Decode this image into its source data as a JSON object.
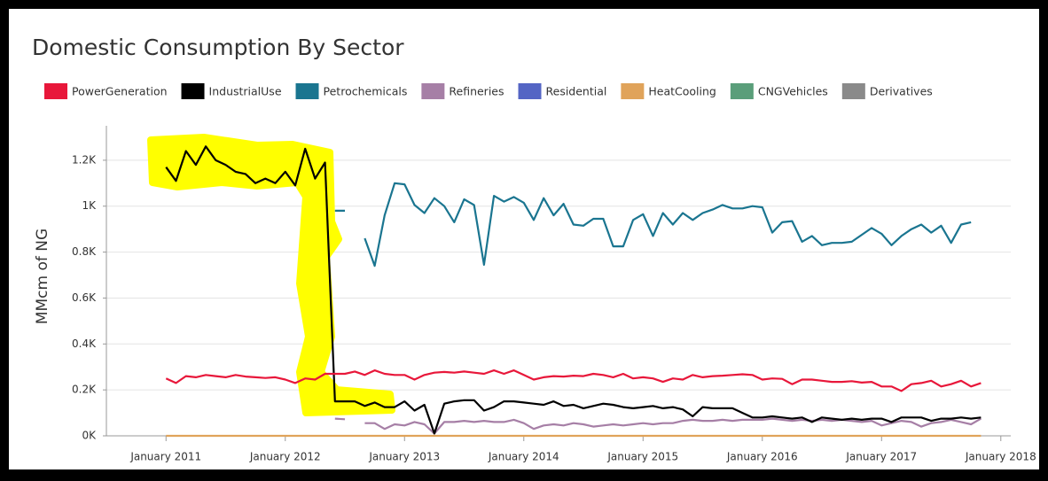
{
  "chart_data": {
    "type": "line",
    "title": "Domestic Consumption By Sector",
    "y_label": "MMcm of NG",
    "x": [
      "2011-01",
      "2011-02",
      "2011-03",
      "2011-04",
      "2011-05",
      "2011-06",
      "2011-07",
      "2011-08",
      "2011-09",
      "2011-10",
      "2011-11",
      "2011-12",
      "2012-01",
      "2012-02",
      "2012-03",
      "2012-04",
      "2012-05",
      "2012-06",
      "2012-07",
      "2012-08",
      "2012-09",
      "2012-10",
      "2012-11",
      "2012-12",
      "2013-01",
      "2013-02",
      "2013-03",
      "2013-04",
      "2013-05",
      "2013-06",
      "2013-07",
      "2013-08",
      "2013-09",
      "2013-10",
      "2013-11",
      "2013-12",
      "2014-01",
      "2014-02",
      "2014-03",
      "2014-04",
      "2014-05",
      "2014-06",
      "2014-07",
      "2014-08",
      "2014-09",
      "2014-10",
      "2014-11",
      "2014-12",
      "2015-01",
      "2015-02",
      "2015-03",
      "2015-04",
      "2015-05",
      "2015-06",
      "2015-07",
      "2015-08",
      "2015-09",
      "2015-10",
      "2015-11",
      "2015-12",
      "2016-01",
      "2016-02",
      "2016-03",
      "2016-04",
      "2016-05",
      "2016-06",
      "2016-07",
      "2016-08",
      "2016-09",
      "2016-10",
      "2016-11",
      "2016-12",
      "2017-01",
      "2017-02",
      "2017-03",
      "2017-04",
      "2017-05",
      "2017-06",
      "2017-07",
      "2017-08",
      "2017-09",
      "2017-10",
      "2017-11",
      "2017-12"
    ],
    "xlim": [
      "2010-07",
      "2018-02"
    ],
    "xticks": [
      {
        "value": "2011-01",
        "label": "January 2011"
      },
      {
        "value": "2012-01",
        "label": "January 2012"
      },
      {
        "value": "2013-01",
        "label": "January 2013"
      },
      {
        "value": "2014-01",
        "label": "January 2014"
      },
      {
        "value": "2015-01",
        "label": "January 2015"
      },
      {
        "value": "2016-01",
        "label": "January 2016"
      },
      {
        "value": "2017-01",
        "label": "January 2017"
      },
      {
        "value": "2018-01",
        "label": "January 2018"
      }
    ],
    "ylim": [
      0,
      1350
    ],
    "yticks": [
      {
        "value": 0,
        "label": "0K"
      },
      {
        "value": 200,
        "label": "0.2K"
      },
      {
        "value": 400,
        "label": "0.4K"
      },
      {
        "value": 600,
        "label": "0.6K"
      },
      {
        "value": 800,
        "label": "0.8K"
      },
      {
        "value": 1000,
        "label": "1K"
      },
      {
        "value": 1200,
        "label": "1.2K"
      }
    ],
    "grid": true,
    "legend": "top",
    "series": [
      {
        "name": "PowerGeneration",
        "color": "#e8173a",
        "values": [
          250,
          230,
          260,
          255,
          265,
          260,
          255,
          265,
          258,
          255,
          252,
          255,
          245,
          230,
          250,
          245,
          270,
          270,
          270,
          280,
          265,
          285,
          270,
          265,
          265,
          245,
          265,
          275,
          278,
          275,
          280,
          275,
          270,
          285,
          270,
          285,
          265,
          245,
          255,
          260,
          258,
          262,
          260,
          270,
          265,
          255,
          270,
          250,
          255,
          250,
          235,
          250,
          245,
          265,
          255,
          260,
          262,
          265,
          268,
          265,
          245,
          250,
          248,
          225,
          245,
          245,
          240,
          235,
          235,
          238,
          232,
          235,
          215,
          215,
          195,
          225,
          230,
          240,
          215,
          225,
          240,
          215,
          230,
          null
        ]
      },
      {
        "name": "IndustrialUse",
        "color": "#000000",
        "values": [
          1170,
          1110,
          1240,
          1180,
          1260,
          1200,
          1180,
          1150,
          1140,
          1100,
          1120,
          1100,
          1150,
          1090,
          1250,
          1120,
          1190,
          150,
          150,
          150,
          130,
          145,
          125,
          125,
          150,
          110,
          135,
          10,
          140,
          150,
          155,
          155,
          110,
          125,
          150,
          150,
          145,
          140,
          135,
          150,
          130,
          135,
          120,
          130,
          140,
          135,
          125,
          120,
          125,
          130,
          120,
          125,
          115,
          85,
          125,
          120,
          120,
          120,
          100,
          80,
          80,
          85,
          80,
          75,
          80,
          60,
          80,
          75,
          70,
          75,
          70,
          75,
          75,
          60,
          80,
          80,
          80,
          65,
          75,
          75,
          80,
          75,
          80,
          null
        ]
      },
      {
        "name": "Petrochemicals",
        "color": "#1a7590",
        "values": [
          null,
          null,
          null,
          null,
          null,
          null,
          null,
          null,
          null,
          null,
          null,
          null,
          null,
          null,
          null,
          null,
          null,
          980,
          980,
          null,
          860,
          740,
          960,
          1100,
          1095,
          1005,
          970,
          1035,
          1000,
          930,
          1030,
          1005,
          745,
          1045,
          1020,
          1040,
          1015,
          940,
          1035,
          960,
          1010,
          920,
          915,
          945,
          945,
          825,
          825,
          940,
          965,
          870,
          970,
          920,
          970,
          940,
          970,
          985,
          1005,
          990,
          990,
          1000,
          995,
          885,
          930,
          935,
          845,
          870,
          830,
          840,
          840,
          845,
          875,
          905,
          880,
          830,
          870,
          900,
          920,
          885,
          915,
          840,
          920,
          930,
          null,
          null
        ]
      },
      {
        "name": "Refineries",
        "color": "#a67fa6",
        "values": [
          null,
          null,
          null,
          null,
          null,
          null,
          null,
          null,
          null,
          null,
          null,
          null,
          null,
          null,
          null,
          null,
          null,
          75,
          72,
          null,
          55,
          55,
          30,
          50,
          45,
          60,
          50,
          10,
          60,
          60,
          65,
          60,
          65,
          60,
          60,
          70,
          55,
          30,
          45,
          50,
          45,
          55,
          50,
          40,
          45,
          50,
          45,
          50,
          55,
          50,
          55,
          55,
          65,
          70,
          65,
          65,
          70,
          65,
          70,
          70,
          70,
          75,
          70,
          65,
          70,
          65,
          70,
          65,
          70,
          65,
          60,
          65,
          45,
          55,
          65,
          60,
          40,
          55,
          60,
          70,
          60,
          50,
          75,
          null
        ]
      },
      {
        "name": "Residential",
        "color": "#5465c4",
        "values": [
          null,
          null,
          null,
          null,
          null,
          null,
          null,
          null,
          null,
          null,
          null,
          null,
          null,
          null,
          null,
          null,
          null,
          null,
          null,
          null,
          null,
          null,
          null,
          null,
          null,
          null,
          null,
          null,
          null,
          null,
          null,
          null,
          null,
          null,
          null,
          null,
          null,
          null,
          null,
          null,
          null,
          null,
          null,
          null,
          null,
          null,
          null,
          null,
          null,
          null,
          null,
          null,
          null,
          null,
          null,
          null,
          null,
          null,
          null,
          null,
          null,
          null,
          null,
          null,
          null,
          null,
          null,
          null,
          null,
          null,
          null,
          null,
          null,
          null,
          null,
          null,
          null,
          null,
          null,
          null,
          null,
          null,
          null,
          null
        ]
      },
      {
        "name": "HeatCooling",
        "color": "#e0a35a",
        "values": [
          0,
          0,
          0,
          0,
          0,
          0,
          0,
          0,
          0,
          0,
          0,
          0,
          0,
          0,
          0,
          0,
          0,
          0,
          0,
          0,
          0,
          0,
          0,
          0,
          0,
          0,
          0,
          0,
          0,
          0,
          0,
          0,
          0,
          0,
          0,
          0,
          0,
          0,
          0,
          0,
          0,
          0,
          0,
          0,
          0,
          0,
          0,
          0,
          0,
          0,
          0,
          0,
          0,
          0,
          0,
          0,
          0,
          0,
          0,
          0,
          0,
          0,
          0,
          0,
          0,
          0,
          0,
          0,
          0,
          0,
          0,
          0,
          0,
          0,
          0,
          0,
          0,
          0,
          0,
          0,
          0,
          0,
          0,
          null
        ]
      },
      {
        "name": "CNGVehicles",
        "color": "#5a9e7a",
        "values": [
          null,
          null,
          null,
          null,
          null,
          null,
          null,
          null,
          null,
          null,
          null,
          null,
          null,
          null,
          null,
          null,
          null,
          null,
          null,
          null,
          null,
          null,
          null,
          null,
          null,
          null,
          null,
          null,
          null,
          null,
          null,
          null,
          null,
          null,
          null,
          null,
          null,
          null,
          null,
          null,
          null,
          null,
          null,
          null,
          null,
          null,
          null,
          null,
          null,
          null,
          null,
          null,
          null,
          null,
          null,
          null,
          null,
          null,
          null,
          null,
          null,
          null,
          null,
          null,
          null,
          null,
          null,
          null,
          null,
          null,
          null,
          null,
          null,
          null,
          null,
          null,
          null,
          null,
          null,
          null,
          null,
          null,
          null,
          null
        ]
      },
      {
        "name": "Derivatives",
        "color": "#8a8a8a",
        "values": [
          null,
          null,
          null,
          null,
          null,
          null,
          null,
          null,
          null,
          null,
          null,
          null,
          null,
          null,
          null,
          null,
          null,
          null,
          null,
          null,
          null,
          null,
          null,
          null,
          null,
          null,
          null,
          null,
          null,
          null,
          null,
          null,
          null,
          null,
          null,
          null,
          null,
          null,
          null,
          null,
          null,
          null,
          null,
          null,
          null,
          null,
          null,
          null,
          null,
          null,
          null,
          null,
          null,
          null,
          null,
          null,
          null,
          null,
          null,
          null,
          null,
          null,
          null,
          null,
          null,
          null,
          null,
          null,
          null,
          null,
          null,
          null,
          null,
          null,
          null,
          null,
          null,
          null,
          null,
          null,
          null,
          null,
          null,
          null
        ]
      }
    ]
  }
}
